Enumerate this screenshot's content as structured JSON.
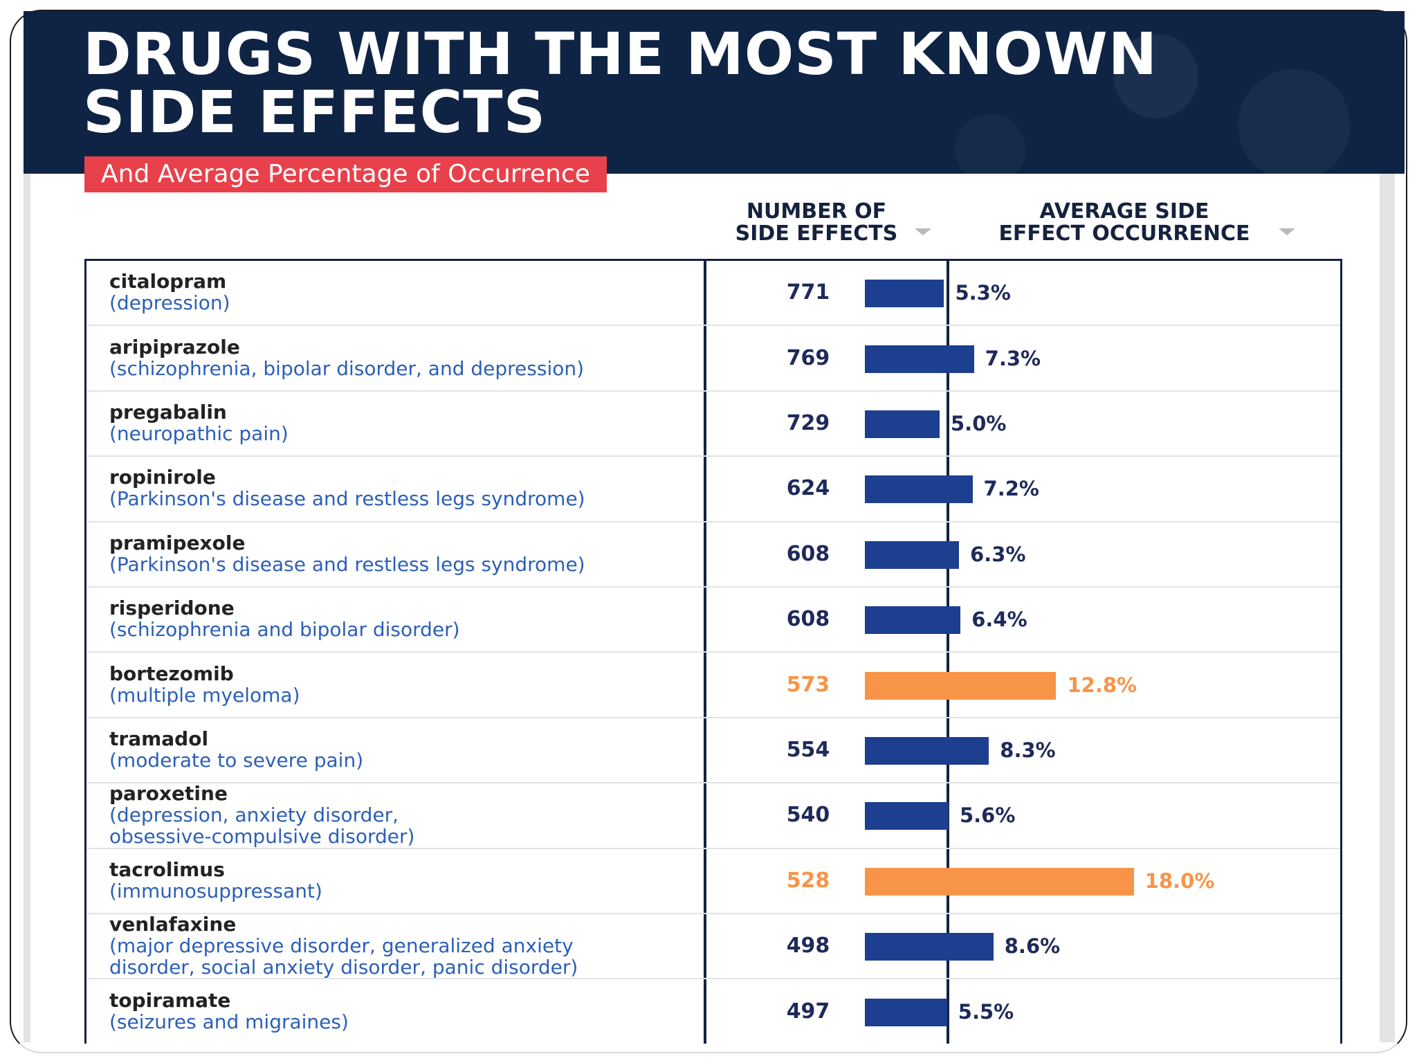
{
  "title_lines": [
    "DRUGS WITH THE MOST KNOWN",
    "SIDE EFFECTS"
  ],
  "subtitle": "And Average Percentage of Occurrence",
  "columns": {
    "count_header": [
      "NUMBER OF",
      "SIDE EFFECTS"
    ],
    "occurrence_header": [
      "AVERAGE SIDE",
      "EFFECT OCCURRENCE"
    ]
  },
  "colors": {
    "header_bg": "#0f2444",
    "accent_red": "#e8414b",
    "bar_default": "#1c3f8f",
    "bar_highlight": "#f79447",
    "text_dark": "#1e2a5a",
    "text_use": "#2b5fb7"
  },
  "chart_data": {
    "type": "table",
    "columns": [
      "drug",
      "use",
      "number_of_side_effects",
      "average_side_effect_occurrence_pct"
    ],
    "bar_scale_max_pct": 20,
    "rows": [
      {
        "drug": "citalopram",
        "use": [
          "(depression)"
        ],
        "count": 771,
        "pct": 5.3,
        "pct_label": "5.3%",
        "highlight": false
      },
      {
        "drug": "aripiprazole",
        "use": [
          "(schizophrenia, bipolar disorder, and depression)"
        ],
        "count": 769,
        "pct": 7.3,
        "pct_label": "7.3%",
        "highlight": false
      },
      {
        "drug": "pregabalin",
        "use": [
          "(neuropathic pain)"
        ],
        "count": 729,
        "pct": 5.0,
        "pct_label": "5.0%",
        "highlight": false
      },
      {
        "drug": "ropinirole",
        "use": [
          "(Parkinson's disease and restless legs syndrome)"
        ],
        "count": 624,
        "pct": 7.2,
        "pct_label": "7.2%",
        "highlight": false
      },
      {
        "drug": "pramipexole",
        "use": [
          "(Parkinson's disease and restless legs syndrome)"
        ],
        "count": 608,
        "pct": 6.3,
        "pct_label": "6.3%",
        "highlight": false
      },
      {
        "drug": "risperidone",
        "use": [
          "(schizophrenia and bipolar disorder)"
        ],
        "count": 608,
        "pct": 6.4,
        "pct_label": "6.4%",
        "highlight": false
      },
      {
        "drug": "bortezomib",
        "use": [
          "(multiple myeloma)"
        ],
        "count": 573,
        "pct": 12.8,
        "pct_label": "12.8%",
        "highlight": true
      },
      {
        "drug": "tramadol",
        "use": [
          "(moderate to severe pain)"
        ],
        "count": 554,
        "pct": 8.3,
        "pct_label": "8.3%",
        "highlight": false
      },
      {
        "drug": "paroxetine",
        "use": [
          "(depression, anxiety disorder,",
          "obsessive-compulsive disorder)"
        ],
        "count": 540,
        "pct": 5.6,
        "pct_label": "5.6%",
        "highlight": false
      },
      {
        "drug": "tacrolimus",
        "use": [
          "(immunosuppressant)"
        ],
        "count": 528,
        "pct": 18.0,
        "pct_label": "18.0%",
        "highlight": true
      },
      {
        "drug": "venlafaxine",
        "use": [
          "(major depressive disorder, generalized anxiety",
          "disorder, social anxiety disorder, panic disorder)"
        ],
        "count": 498,
        "pct": 8.6,
        "pct_label": "8.6%",
        "highlight": false
      },
      {
        "drug": "topiramate",
        "use": [
          "(seizures and migraines)"
        ],
        "count": 497,
        "pct": 5.5,
        "pct_label": "5.5%",
        "highlight": false
      }
    ]
  }
}
